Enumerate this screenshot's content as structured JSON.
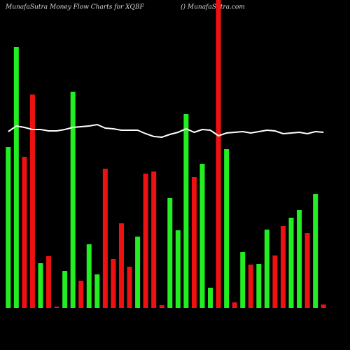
{
  "chart_data": {
    "type": "bar",
    "title": "MunafaSutra  Money Flow  Charts for XQBF",
    "subtitle": "() MunafaSutra.com",
    "categories": [
      null,
      null,
      null,
      null,
      null,
      null,
      null,
      null,
      null,
      null,
      null,
      null,
      null,
      null,
      null,
      null,
      null,
      null,
      null,
      null,
      null,
      null,
      null,
      null,
      null,
      null,
      null,
      null,
      null,
      null,
      null,
      null,
      null,
      null,
      null,
      null,
      null,
      null,
      null,
      null
    ],
    "values": [
      230,
      373,
      216,
      305,
      64,
      74,
      2,
      53,
      309,
      39,
      91,
      48,
      199,
      70,
      121,
      59,
      102,
      192,
      195,
      4,
      157,
      111,
      277,
      187,
      206,
      29,
      440,
      227,
      8,
      80,
      62,
      63,
      112,
      75,
      117,
      129,
      140,
      107,
      163,
      5
    ],
    "colors": [
      "#22ee22",
      "#22ee22",
      "#ee1111",
      "#ee1111",
      "#22ee22",
      "#ee1111",
      "#ee1111",
      "#22ee22",
      "#22ee22",
      "#ee1111",
      "#22ee22",
      "#22ee22",
      "#ee1111",
      "#ee1111",
      "#ee1111",
      "#ee1111",
      "#22ee22",
      "#ee1111",
      "#ee1111",
      "#ee1111",
      "#22ee22",
      "#22ee22",
      "#22ee22",
      "#ee1111",
      "#22ee22",
      "#22ee22",
      "#ee1111",
      "#22ee22",
      "#ee1111",
      "#22ee22",
      "#ee1111",
      "#22ee22",
      "#22ee22",
      "#ee1111",
      "#ee1111",
      "#22ee22",
      "#22ee22",
      "#ee1111",
      "#22ee22",
      "#ee1111"
    ],
    "line": {
      "color": "#ffffff",
      "values": [
        252,
        260,
        258,
        255,
        255,
        253,
        253,
        255,
        258,
        259,
        260,
        262,
        257,
        256,
        254,
        254,
        254,
        249,
        245,
        244,
        248,
        251,
        256,
        251,
        255,
        254,
        246,
        250,
        251,
        252,
        250,
        252,
        254,
        253,
        249,
        250,
        251,
        249,
        252,
        251
      ]
    },
    "ylim": [
      0,
      440
    ]
  }
}
